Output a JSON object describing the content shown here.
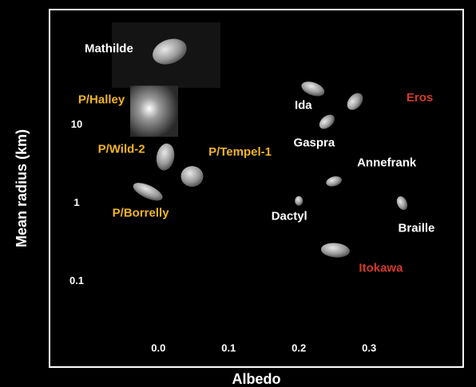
{
  "chart_data": {
    "type": "scatter",
    "xlabel": "Albedo",
    "ylabel": "Mean radius  (km)",
    "xlim": [
      -0.155,
      0.434
    ],
    "ylim": [
      0.008,
      300
    ],
    "yscale": "log",
    "xticks": [
      {
        "value": 0,
        "label": "0.0"
      },
      0.1,
      0.2,
      0.3
    ],
    "yticks": [
      0.1,
      1,
      10
    ],
    "grid": false,
    "series": [
      {
        "name": "Mathilde",
        "color": "#ffffff",
        "x": [
          0.016
        ],
        "values": [
          87
        ]
      },
      {
        "name": "P/Halley",
        "color": "#f0b428",
        "x": [
          -0.006
        ],
        "values": [
          15
        ]
      },
      {
        "name": "P/Wild-2",
        "color": "#f0b428",
        "x": [
          0.01
        ],
        "values": [
          3.9
        ]
      },
      {
        "name": "P/Tempel-1",
        "color": "#f0b428",
        "x": [
          0.048
        ],
        "values": [
          2.2
        ]
      },
      {
        "name": "P/Borrelly",
        "color": "#f0b428",
        "x": [
          -0.015
        ],
        "values": [
          1.4
        ]
      },
      {
        "name": "Ida",
        "color": "#ffffff",
        "x": [
          0.22
        ],
        "values": [
          29
        ]
      },
      {
        "name": "Eros",
        "color": "#d23a28",
        "x": [
          0.28
        ],
        "values": [
          20
        ]
      },
      {
        "name": "Gaspra",
        "color": "#ffffff",
        "x": [
          0.24
        ],
        "values": [
          11
        ]
      },
      {
        "name": "Annefrank",
        "color": "#ffffff",
        "x": [
          0.25
        ],
        "values": [
          1.9
        ]
      },
      {
        "name": "Dactyl",
        "color": "#ffffff",
        "x": [
          0.2
        ],
        "values": [
          1.07
        ]
      },
      {
        "name": "Braille",
        "color": "#ffffff",
        "x": [
          0.347
        ],
        "values": [
          1.0
        ]
      },
      {
        "name": "Itokawa",
        "color": "#d23a28",
        "x": [
          0.252
        ],
        "values": [
          0.25
        ]
      }
    ]
  }
}
